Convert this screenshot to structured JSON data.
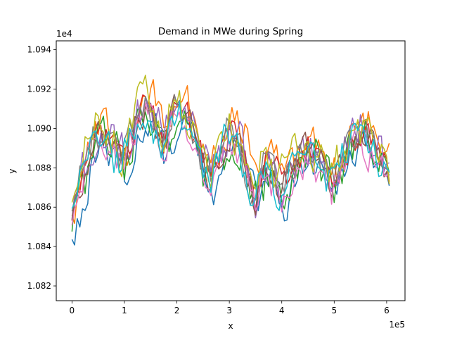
{
  "chart_data": {
    "type": "line",
    "title": "Demand in MWe during Spring",
    "xlabel": "x",
    "ylabel": "y",
    "x_offset_text": "1e5",
    "y_offset_text": "1e4",
    "xlim": [
      -30000,
      635000
    ],
    "ylim": [
      10812.5,
      10944.5
    ],
    "x_ticks": [
      0,
      100000,
      200000,
      300000,
      400000,
      500000,
      600000
    ],
    "x_tick_labels": [
      "0",
      "1",
      "2",
      "3",
      "4",
      "5",
      "6"
    ],
    "y_ticks": [
      10820,
      10840,
      10860,
      10880,
      10900,
      10920,
      10940
    ],
    "y_tick_labels": [
      "1.082",
      "1.084",
      "1.086",
      "1.088",
      "1.090",
      "1.092",
      "1.094"
    ],
    "grid": false,
    "legend": "none",
    "x_start": 0,
    "x_end": 605000,
    "point_count": 122,
    "trend": {
      "x": [
        0,
        25000,
        50000,
        75000,
        100000,
        125000,
        150000,
        175000,
        200000,
        225000,
        250000,
        275000,
        300000,
        325000,
        350000,
        375000,
        400000,
        425000,
        450000,
        475000,
        500000,
        525000,
        550000,
        575000,
        605000
      ],
      "y": [
        10854,
        10878,
        10900,
        10890,
        10882,
        10905,
        10912,
        10890,
        10912,
        10902,
        10880,
        10875,
        10898,
        10890,
        10862,
        10884,
        10868,
        10880,
        10890,
        10882,
        10872,
        10886,
        10898,
        10892,
        10874
      ]
    },
    "series": [
      {
        "color": "#1f77b4",
        "offset": -6,
        "amp": 9,
        "seed": 1
      },
      {
        "color": "#ff7f0e",
        "offset": 6,
        "amp": 9,
        "seed": 2
      },
      {
        "color": "#2ca02c",
        "offset": -2,
        "amp": 11,
        "seed": 3
      },
      {
        "color": "#d62728",
        "offset": 2,
        "amp": 8,
        "seed": 4
      },
      {
        "color": "#9467bd",
        "offset": 3,
        "amp": 10,
        "seed": 5
      },
      {
        "color": "#8c564b",
        "offset": 0,
        "amp": 8,
        "seed": 6
      },
      {
        "color": "#e377c2",
        "offset": -4,
        "amp": 9,
        "seed": 7
      },
      {
        "color": "#7f7f7f",
        "offset": 1,
        "amp": 8,
        "seed": 8
      },
      {
        "color": "#bcbd22",
        "offset": 4,
        "amp": 10,
        "seed": 9
      },
      {
        "color": "#17becf",
        "offset": -1,
        "amp": 9,
        "seed": 10
      }
    ]
  }
}
